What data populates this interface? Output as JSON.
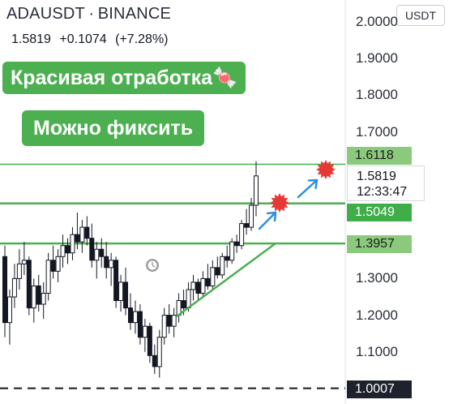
{
  "header": {
    "symbol": "ADAUSDT",
    "separator": "·",
    "exchange": "BINANCE",
    "last": "1.5819",
    "change": "+0.1074",
    "change_pct": "(+7.28%)"
  },
  "annotations": {
    "banner1": "Красивая отработка🍬",
    "banner2": "Можно фиксить"
  },
  "currency_button": "USDT",
  "price_axis": {
    "ticks": [
      "2.0000",
      "1.9000",
      "1.8000",
      "1.7000",
      "1.3000",
      "1.2000",
      "1.1000"
    ],
    "tick_values": [
      2.0,
      1.9,
      1.8,
      1.7,
      1.3,
      1.2,
      1.1
    ]
  },
  "price_tags": {
    "target_top": "1.6118",
    "target_mid": "1.5049",
    "support": "1.3957",
    "low": "1.0007",
    "live_price": "1.5819",
    "countdown": "12:33:47"
  },
  "colors": {
    "up": "#26a69a",
    "candle": "#131722",
    "level_line": "#4caf50",
    "arrow": "#2f8fe0",
    "star": "#e53935",
    "banner": "#4caf50"
  },
  "chart_data": {
    "type": "candlestick",
    "ylim": [
      0.96,
      2.02
    ],
    "levels": [
      1.6118,
      1.5049,
      1.3957
    ],
    "dashed_level": 1.0007,
    "trendline": [
      [
        1.18,
        1.4
      ]
    ],
    "candles": [
      [
        1.36,
        1.39,
        1.14,
        1.18
      ],
      [
        1.18,
        1.27,
        1.12,
        1.25
      ],
      [
        1.25,
        1.34,
        1.22,
        1.3
      ],
      [
        1.3,
        1.38,
        1.27,
        1.34
      ],
      [
        1.34,
        1.4,
        1.31,
        1.35
      ],
      [
        1.35,
        1.36,
        1.2,
        1.22
      ],
      [
        1.22,
        1.3,
        1.18,
        1.28
      ],
      [
        1.28,
        1.31,
        1.21,
        1.23
      ],
      [
        1.23,
        1.29,
        1.19,
        1.26
      ],
      [
        1.26,
        1.37,
        1.24,
        1.35
      ],
      [
        1.35,
        1.39,
        1.3,
        1.32
      ],
      [
        1.32,
        1.38,
        1.29,
        1.36
      ],
      [
        1.36,
        1.42,
        1.33,
        1.39
      ],
      [
        1.39,
        1.41,
        1.34,
        1.37
      ],
      [
        1.37,
        1.44,
        1.35,
        1.42
      ],
      [
        1.42,
        1.48,
        1.38,
        1.4
      ],
      [
        1.4,
        1.46,
        1.37,
        1.44
      ],
      [
        1.44,
        1.47,
        1.39,
        1.41
      ],
      [
        1.41,
        1.45,
        1.33,
        1.35
      ],
      [
        1.35,
        1.4,
        1.3,
        1.38
      ],
      [
        1.38,
        1.41,
        1.33,
        1.36
      ],
      [
        1.36,
        1.4,
        1.3,
        1.33
      ],
      [
        1.33,
        1.37,
        1.28,
        1.35
      ],
      [
        1.35,
        1.36,
        1.22,
        1.24
      ],
      [
        1.24,
        1.31,
        1.21,
        1.29
      ],
      [
        1.29,
        1.33,
        1.2,
        1.22
      ],
      [
        1.22,
        1.26,
        1.16,
        1.18
      ],
      [
        1.18,
        1.24,
        1.15,
        1.21
      ],
      [
        1.21,
        1.23,
        1.12,
        1.14
      ],
      [
        1.14,
        1.19,
        1.1,
        1.17
      ],
      [
        1.17,
        1.18,
        1.07,
        1.09
      ],
      [
        1.09,
        1.12,
        1.04,
        1.06
      ],
      [
        1.06,
        1.16,
        1.03,
        1.14
      ],
      [
        1.14,
        1.22,
        1.12,
        1.2
      ],
      [
        1.2,
        1.23,
        1.15,
        1.17
      ],
      [
        1.17,
        1.22,
        1.14,
        1.2
      ],
      [
        1.2,
        1.26,
        1.18,
        1.24
      ],
      [
        1.24,
        1.27,
        1.2,
        1.22
      ],
      [
        1.22,
        1.29,
        1.21,
        1.27
      ],
      [
        1.27,
        1.31,
        1.24,
        1.29
      ],
      [
        1.29,
        1.3,
        1.24,
        1.26
      ],
      [
        1.26,
        1.32,
        1.25,
        1.3
      ],
      [
        1.3,
        1.34,
        1.27,
        1.28
      ],
      [
        1.28,
        1.35,
        1.27,
        1.33
      ],
      [
        1.33,
        1.36,
        1.3,
        1.31
      ],
      [
        1.31,
        1.37,
        1.3,
        1.36
      ],
      [
        1.36,
        1.39,
        1.33,
        1.35
      ],
      [
        1.35,
        1.41,
        1.34,
        1.4
      ],
      [
        1.4,
        1.42,
        1.37,
        1.39
      ],
      [
        1.39,
        1.46,
        1.38,
        1.45
      ],
      [
        1.45,
        1.49,
        1.42,
        1.44
      ],
      [
        1.44,
        1.52,
        1.43,
        1.5
      ],
      [
        1.5,
        1.62,
        1.47,
        1.58
      ]
    ]
  }
}
